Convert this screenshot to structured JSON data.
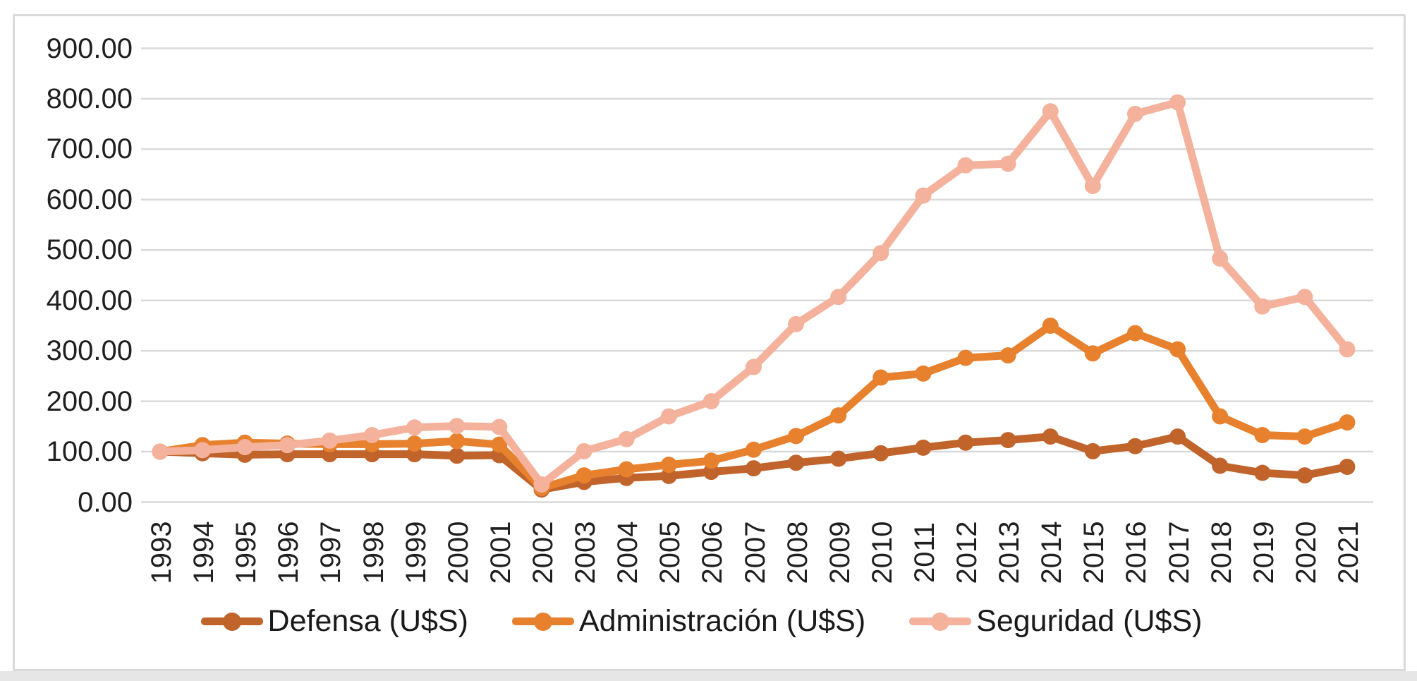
{
  "chart_data": {
    "type": "line",
    "title": "",
    "categories": [
      "1993",
      "1994",
      "1995",
      "1996",
      "1997",
      "1998",
      "1999",
      "2000",
      "2001",
      "2002",
      "2003",
      "2004",
      "2005",
      "2006",
      "2007",
      "2008",
      "2009",
      "2010",
      "2011",
      "2012",
      "2013",
      "2014",
      "2015",
      "2016",
      "2017",
      "2018",
      "2019",
      "2020",
      "2021"
    ],
    "series": [
      {
        "id": "defensa",
        "label": "Defensa (U$S)",
        "color": "#C0642B",
        "values": [
          100,
          97,
          94,
          95,
          95,
          95,
          95,
          92,
          93,
          25,
          40,
          48,
          52,
          60,
          67,
          78,
          86,
          97,
          108,
          118,
          123,
          130,
          101,
          111,
          130,
          72,
          58,
          53,
          70
        ]
      },
      {
        "id": "administracion",
        "label": "Administración (U$S)",
        "color": "#E8812E",
        "values": [
          100,
          113,
          118,
          116,
          115,
          115,
          116,
          121,
          114,
          28,
          53,
          65,
          74,
          82,
          104,
          131,
          172,
          247,
          255,
          286,
          291,
          350,
          295,
          335,
          303,
          170,
          133,
          130,
          158
        ]
      },
      {
        "id": "seguridad",
        "label": "Seguridad (U$S)",
        "color": "#F4B29C",
        "values": [
          100,
          103,
          109,
          113,
          122,
          133,
          148,
          151,
          149,
          35,
          101,
          125,
          170,
          200,
          268,
          353,
          407,
          494,
          608,
          668,
          671,
          775,
          627,
          770,
          793,
          483,
          388,
          407,
          303
        ]
      }
    ],
    "y_axis": {
      "min": 0,
      "max": 900,
      "step": 100,
      "tick_labels": [
        "0.00",
        "100.00",
        "200.00",
        "300.00",
        "400.00",
        "500.00",
        "600.00",
        "700.00",
        "800.00",
        "900.00"
      ]
    },
    "grid": true,
    "legend_position": "bottom"
  },
  "colors": {
    "gridline": "#D9D9D9",
    "frame_border": "#D9D9D9",
    "text": "#1f1f1f",
    "background": "#FFFFFF",
    "footer_strip": "#E7E6E6"
  }
}
